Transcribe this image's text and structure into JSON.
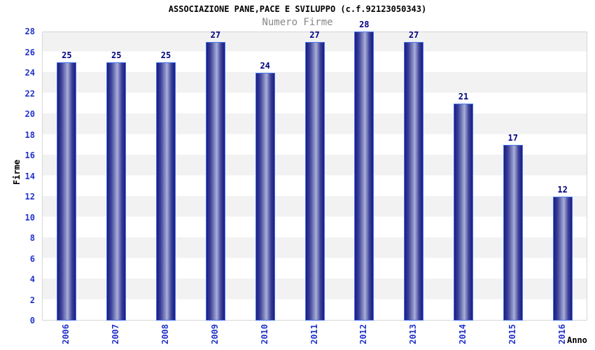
{
  "title": "ASSOCIAZIONE PANE,PACE E SVILUPPO (c.f.92123050343)",
  "subtitle": "Numero Firme",
  "chart_data": {
    "type": "bar",
    "categories": [
      "2006",
      "2007",
      "2008",
      "2009",
      "2010",
      "2011",
      "2012",
      "2013",
      "2014",
      "2015",
      "2016"
    ],
    "values": [
      25,
      25,
      25,
      27,
      24,
      27,
      28,
      27,
      21,
      17,
      12
    ],
    "title": "ASSOCIAZIONE PANE,PACE E SVILUPPO (c.f.92123050343)",
    "subtitle": "Numero Firme",
    "xlabel": "Anno",
    "ylabel": "Firme",
    "ylim": [
      0,
      28
    ],
    "yticks": [
      0,
      2,
      4,
      6,
      8,
      10,
      12,
      14,
      16,
      18,
      20,
      22,
      24,
      26,
      28
    ],
    "grid": "alternating horizontal bands every 2 units",
    "legend": "none",
    "value_labels": true,
    "x_tick_rotation": -90
  },
  "colors": {
    "title": "#000000",
    "subtitle": "#888888",
    "tick_label": "#2233cc",
    "value_label": "#000080",
    "band_gray": "#f2f2f2",
    "band_white": "#ffffff",
    "plot_border": "#d6d6d6",
    "bar_border": "#4576f2",
    "bar_dark": "#1b1b7e",
    "bar_mid": "#3c4199",
    "bar_light": "#a9afd7"
  }
}
